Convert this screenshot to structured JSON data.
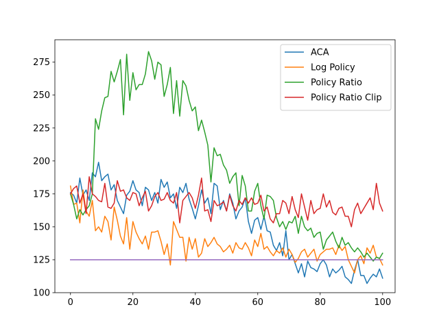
{
  "chart_data": {
    "type": "line",
    "xlim": [
      -5,
      104
    ],
    "ylim": [
      100,
      292
    ],
    "x_ticks": [
      0,
      20,
      40,
      60,
      80,
      100
    ],
    "y_ticks": [
      100,
      125,
      150,
      175,
      200,
      225,
      250,
      275
    ],
    "legend_position": "top-right",
    "grid": false,
    "series": [
      {
        "name": "ACA",
        "color": "#1f77b4",
        "values": [
          176,
          174,
          168,
          187,
          174,
          178,
          170,
          191,
          188,
          199,
          185,
          188,
          190,
          178,
          182,
          170,
          165,
          160,
          174,
          177,
          185,
          178,
          176,
          166,
          180,
          178,
          170,
          176,
          168,
          186,
          180,
          184,
          172,
          175,
          164,
          180,
          176,
          183,
          171,
          164,
          156,
          166,
          178,
          168,
          172,
          160,
          183,
          181,
          163,
          170,
          162,
          175,
          168,
          156,
          162,
          165,
          172,
          154,
          145,
          155,
          157,
          148,
          158,
          147,
          146,
          136,
          132,
          138,
          128,
          147,
          125,
          129,
          122,
          115,
          122,
          112,
          124,
          119,
          118,
          116,
          122,
          125,
          121,
          112,
          118,
          115,
          117,
          120,
          112,
          110,
          107,
          117,
          125,
          113,
          113,
          107,
          111,
          114,
          112,
          118,
          111
        ]
      },
      {
        "name": "Log Policy",
        "color": "#ff7f0e",
        "values": [
          181,
          167,
          168,
          153,
          178,
          162,
          158,
          170,
          147,
          150,
          146,
          158,
          154,
          140,
          165,
          155,
          143,
          137,
          157,
          133,
          154,
          146,
          141,
          137,
          143,
          133,
          146,
          146,
          147,
          139,
          129,
          137,
          121,
          154,
          148,
          142,
          142,
          124,
          142,
          133,
          141,
          127,
          130,
          141,
          135,
          138,
          142,
          137,
          135,
          131,
          133,
          136,
          130,
          138,
          134,
          133,
          138,
          134,
          128,
          140,
          135,
          145,
          133,
          135,
          131,
          128,
          132,
          130,
          134,
          127,
          133,
          129,
          123,
          126,
          131,
          133,
          127,
          130,
          133,
          124,
          129,
          131,
          133,
          133,
          134,
          129,
          136,
          132,
          135,
          125,
          120,
          115,
          125,
          128,
          122,
          134,
          130,
          136,
          127,
          126,
          121
        ]
      },
      {
        "name": "Policy Ratio",
        "color": "#2ca02c",
        "values": [
          175,
          167,
          156,
          163,
          159,
          163,
          166,
          175,
          232,
          224,
          238,
          248,
          249,
          268,
          260,
          268,
          277,
          235,
          281,
          246,
          267,
          254,
          258,
          258,
          266,
          283,
          276,
          262,
          275,
          273,
          249,
          258,
          271,
          236,
          261,
          234,
          261,
          257,
          246,
          238,
          241,
          223,
          231,
          222,
          212,
          184,
          210,
          204,
          205,
          197,
          193,
          183,
          188,
          191,
          166,
          189,
          181,
          162,
          162,
          177,
          183,
          166,
          156,
          174,
          173,
          170,
          157,
          150,
          154,
          148,
          154,
          153,
          158,
          145,
          158,
          150,
          147,
          149,
          142,
          145,
          146,
          133,
          140,
          143,
          146,
          139,
          134,
          142,
          136,
          138,
          134,
          131,
          134,
          131,
          127,
          130,
          127,
          124,
          127,
          126,
          130
        ]
      },
      {
        "name": "Policy Ratio Clip",
        "color": "#d62728",
        "values": [
          175,
          179,
          181,
          168,
          175,
          160,
          188,
          175,
          173,
          170,
          169,
          183,
          165,
          164,
          168,
          185,
          177,
          178,
          172,
          170,
          176,
          175,
          166,
          172,
          177,
          162,
          166,
          173,
          176,
          170,
          171,
          176,
          170,
          168,
          176,
          153,
          170,
          173,
          176,
          172,
          164,
          174,
          187,
          162,
          163,
          154,
          170,
          166,
          167,
          169,
          162,
          174,
          166,
          162,
          170,
          167,
          172,
          168,
          172,
          167,
          168,
          174,
          162,
          165,
          156,
          153,
          160,
          160,
          170,
          168,
          160,
          173,
          163,
          157,
          175,
          165,
          155,
          170,
          160,
          163,
          164,
          175,
          165,
          170,
          161,
          159,
          164,
          165,
          158,
          158,
          150,
          163,
          168,
          160,
          164,
          168,
          172,
          163,
          183,
          168,
          162
        ]
      },
      {
        "name": "",
        "color": "#9467bd",
        "values": [
          125,
          125,
          125,
          125,
          125,
          125,
          125,
          125,
          125,
          125,
          125,
          125,
          125,
          125,
          125,
          125,
          125,
          125,
          125,
          125,
          125,
          125,
          125,
          125,
          125,
          125,
          125,
          125,
          125,
          125,
          125,
          125,
          125,
          125,
          125,
          125,
          125,
          125,
          125,
          125,
          125,
          125,
          125,
          125,
          125,
          125,
          125,
          125,
          125,
          125,
          125,
          125,
          125,
          125,
          125,
          125,
          125,
          125,
          125,
          125,
          125,
          125,
          125,
          125,
          125,
          125,
          125,
          125,
          125,
          125,
          125,
          125,
          125,
          125,
          125,
          125,
          125,
          125,
          125,
          125,
          125,
          125,
          125,
          125,
          125,
          125,
          125,
          125,
          125,
          125,
          125,
          125,
          125,
          125,
          125,
          125,
          125,
          125,
          125,
          125,
          125
        ]
      }
    ]
  }
}
